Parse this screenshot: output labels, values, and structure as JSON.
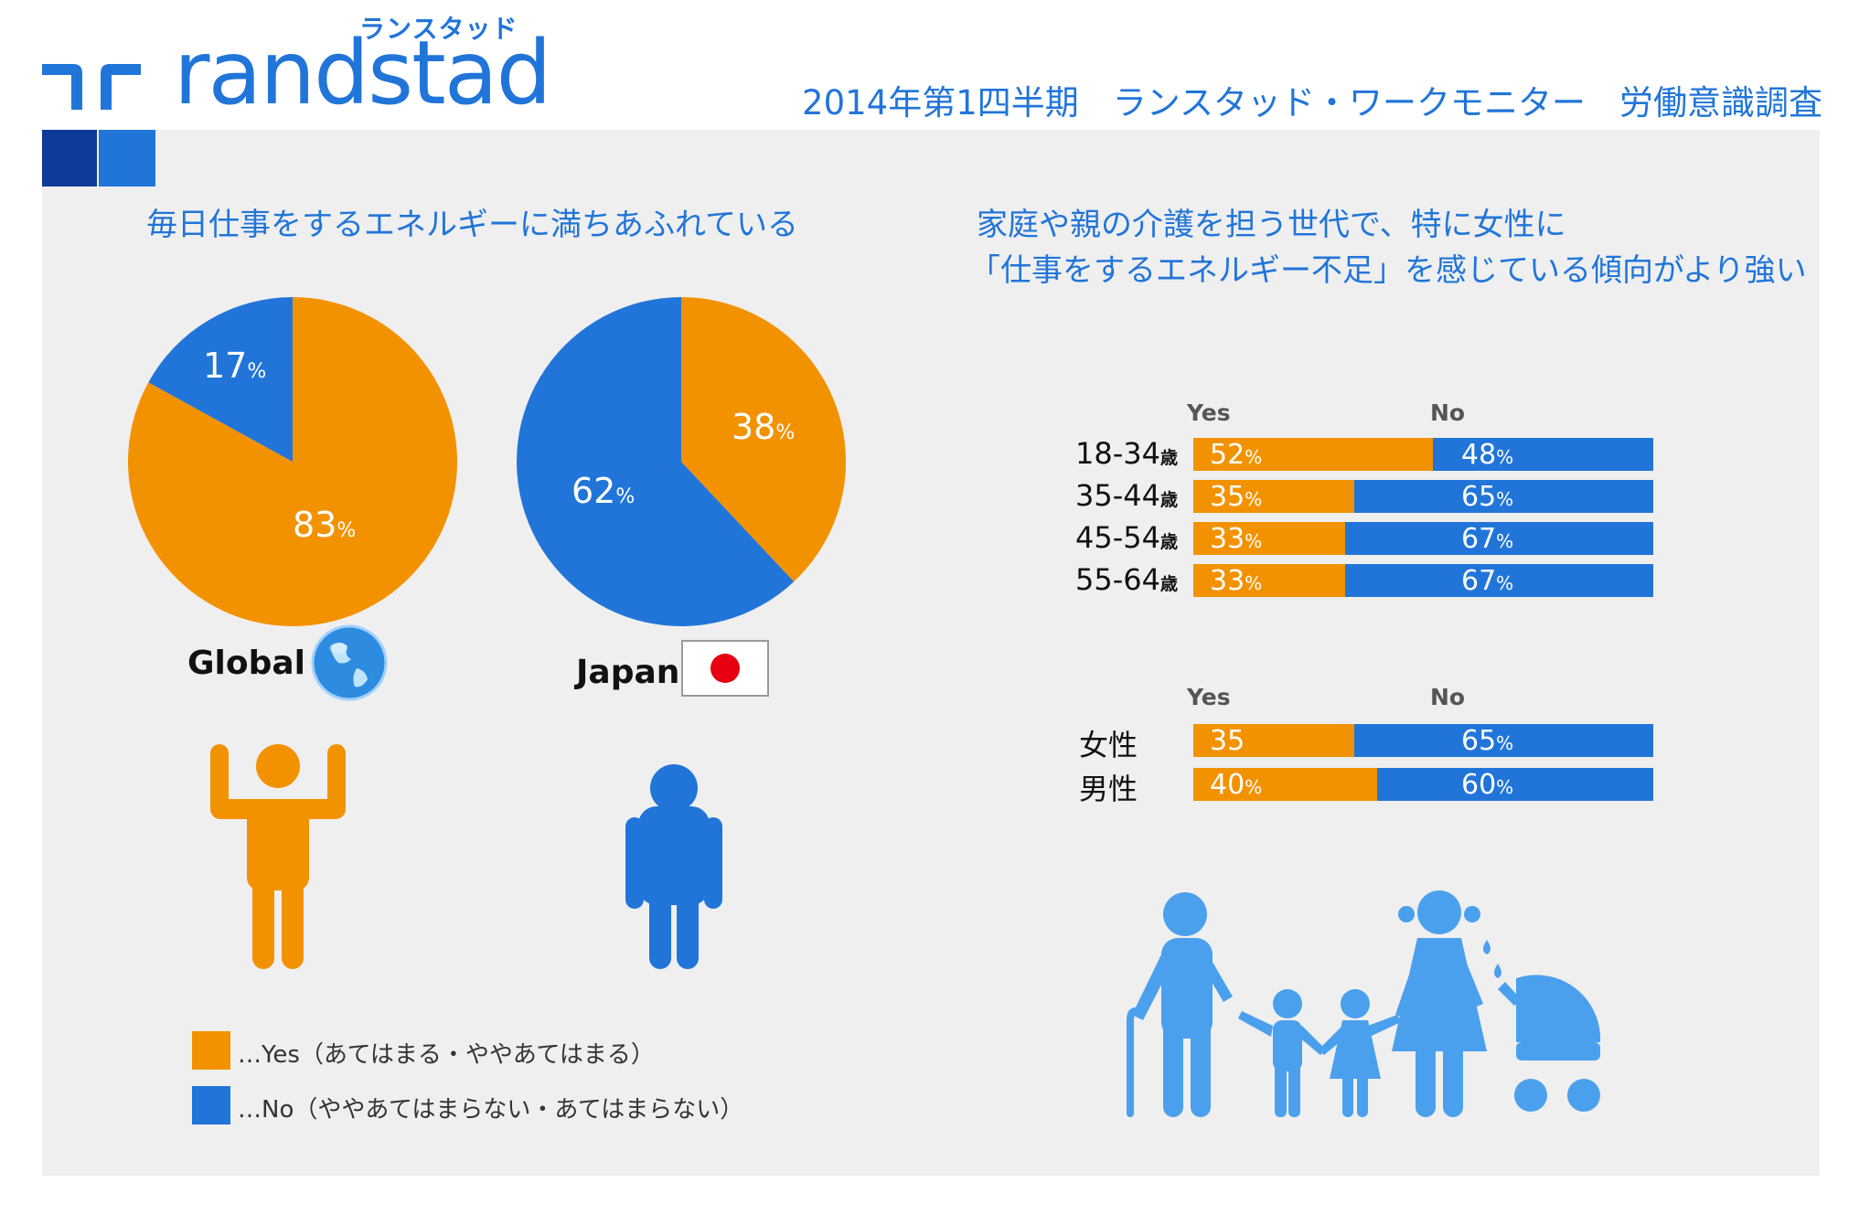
{
  "header": {
    "logo_kana": "ランスタッド",
    "logo_word": "randstad",
    "title": "2014年第1四半期　ランスタッド・ワークモニター　労働意識調査"
  },
  "left": {
    "heading": "毎日仕事をするエネルギーに満ちあふれている"
  },
  "right": {
    "heading_line1": "家庭や親の介護を担う世代で、特に女性に",
    "heading_line2": "「仕事をするエネルギー不足」を感じている傾向がより強い"
  },
  "colors": {
    "yes": "#f39200",
    "no": "#2175d9",
    "dark_blue": "#0f3a9a",
    "panel": "#efefef"
  },
  "icons": [
    "randstad-logo-icon",
    "globe-icon",
    "japan-flag-icon",
    "cheering-person-icon",
    "slumped-person-icon",
    "family-icon"
  ],
  "chart_data": [
    {
      "type": "pie",
      "name": "Global",
      "slices": [
        {
          "label": "Yes",
          "value": 83,
          "display": "83",
          "unit": "%"
        },
        {
          "label": "No",
          "value": 17,
          "display": "17",
          "unit": "%"
        }
      ]
    },
    {
      "type": "pie",
      "name": "Japan",
      "slices": [
        {
          "label": "Yes",
          "value": 38,
          "display": "38",
          "unit": "%"
        },
        {
          "label": "No",
          "value": 62,
          "display": "62",
          "unit": "%"
        }
      ]
    },
    {
      "type": "bar",
      "orientation": "horizontal-stacked",
      "yes_label": "Yes",
      "no_label": "No",
      "rows": [
        {
          "label": "18-34",
          "unit": "歳",
          "yes": 52,
          "yes_display": "52",
          "yes_unit": "%",
          "no": 48,
          "no_display": "48",
          "no_unit": "%"
        },
        {
          "label": "35-44",
          "unit": "歳",
          "yes": 35,
          "yes_display": "35",
          "yes_unit": "%",
          "no": 65,
          "no_display": "65",
          "no_unit": "%"
        },
        {
          "label": "45-54",
          "unit": "歳",
          "yes": 33,
          "yes_display": "33",
          "yes_unit": "%",
          "no": 67,
          "no_display": "67",
          "no_unit": "%"
        },
        {
          "label": "55-64",
          "unit": "歳",
          "yes": 33,
          "yes_display": "33",
          "yes_unit": "%",
          "no": 67,
          "no_display": "67",
          "no_unit": "%"
        }
      ]
    },
    {
      "type": "bar",
      "orientation": "horizontal-stacked",
      "yes_label": "Yes",
      "no_label": "No",
      "rows": [
        {
          "label": "女性",
          "unit": "",
          "yes": 35,
          "yes_display": "35",
          "yes_unit": "",
          "no": 65,
          "no_display": "65",
          "no_unit": "%"
        },
        {
          "label": "男性",
          "unit": "",
          "yes": 40,
          "yes_display": "40",
          "yes_unit": "%",
          "no": 60,
          "no_display": "60",
          "no_unit": "%"
        }
      ]
    }
  ],
  "legend": [
    {
      "key": "yes",
      "text": "…Yes（あてはまる・ややあてはまる）"
    },
    {
      "key": "no",
      "text": "…No（ややあてはまらない・あてはまらない）"
    }
  ]
}
